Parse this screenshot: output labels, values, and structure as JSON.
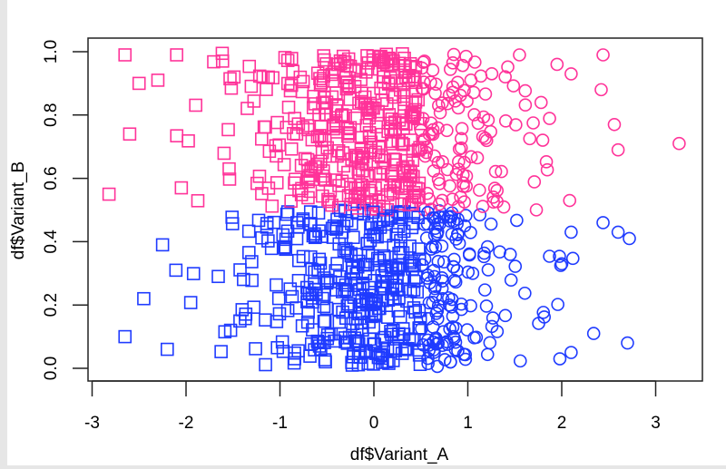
{
  "chart_data": {
    "type": "scatter",
    "title": "",
    "xlabel": "df$Variant_A",
    "ylabel": "df$Variant_B",
    "xlim": [
      -2.95,
      3.55
    ],
    "ylim": [
      -0.04,
      1.04
    ],
    "x_ticks": [
      -3,
      -2,
      -1,
      0,
      1,
      2,
      3
    ],
    "x_tick_labels": [
      "-3",
      "-2",
      "-1",
      "0",
      "1",
      "2",
      "3"
    ],
    "y_ticks": [
      0.0,
      0.2,
      0.4,
      0.6,
      0.8,
      1.0
    ],
    "y_tick_labels": [
      "0.0",
      "0.2",
      "0.4",
      "0.6",
      "0.8",
      "1.0"
    ],
    "grid": false,
    "legend": null,
    "encoding": {
      "color_rule": "pink if Variant_B > 0.5 else blue",
      "shape_rule": "square if Variant_A < 0.5 else circle",
      "colors": {
        "high_B": "#FF3399",
        "low_B": "#1F3BFF"
      },
      "marker_size_px": 13
    },
    "distribution": {
      "n_points": 1000,
      "Variant_A": "approximately normal, mean 0, sd 1",
      "Variant_B": "approximately uniform on [0, 1]"
    },
    "series": [
      {
        "name": "B > 0.5, A < 0.5",
        "marker": "square",
        "color": "#FF3399"
      },
      {
        "name": "B > 0.5, A >= 0.5",
        "marker": "circle",
        "color": "#FF3399"
      },
      {
        "name": "B <= 0.5, A < 0.5",
        "marker": "square",
        "color": "#1F3BFF"
      },
      {
        "name": "B <= 0.5, A >= 0.5",
        "marker": "circle",
        "color": "#1F3BFF"
      }
    ],
    "notable_points": [
      {
        "x": -2.82,
        "y": 0.55
      },
      {
        "x": -2.65,
        "y": 0.99
      },
      {
        "x": -2.6,
        "y": 0.74
      },
      {
        "x": -2.5,
        "y": 0.9
      },
      {
        "x": -2.3,
        "y": 0.91
      },
      {
        "x": -2.65,
        "y": 0.1
      },
      {
        "x": -2.45,
        "y": 0.22
      },
      {
        "x": -2.25,
        "y": 0.39
      },
      {
        "x": -2.2,
        "y": 0.06
      },
      {
        "x": -2.1,
        "y": 0.99
      },
      {
        "x": -2.05,
        "y": 0.57
      },
      {
        "x": 1.55,
        "y": 0.99
      },
      {
        "x": 2.44,
        "y": 0.99
      },
      {
        "x": 1.95,
        "y": 0.96
      },
      {
        "x": 2.1,
        "y": 0.93
      },
      {
        "x": 3.25,
        "y": 0.71
      },
      {
        "x": 2.56,
        "y": 0.77
      },
      {
        "x": 2.42,
        "y": 0.88
      },
      {
        "x": 2.6,
        "y": 0.69
      },
      {
        "x": 2.44,
        "y": 0.46
      },
      {
        "x": 2.6,
        "y": 0.43
      },
      {
        "x": 2.72,
        "y": 0.41
      },
      {
        "x": 2.1,
        "y": 0.43
      },
      {
        "x": 2.7,
        "y": 0.08
      },
      {
        "x": 2.34,
        "y": 0.11
      },
      {
        "x": 2.1,
        "y": 0.05
      },
      {
        "x": 1.98,
        "y": 0.03
      },
      {
        "x": 2.0,
        "y": 0.33
      }
    ]
  }
}
